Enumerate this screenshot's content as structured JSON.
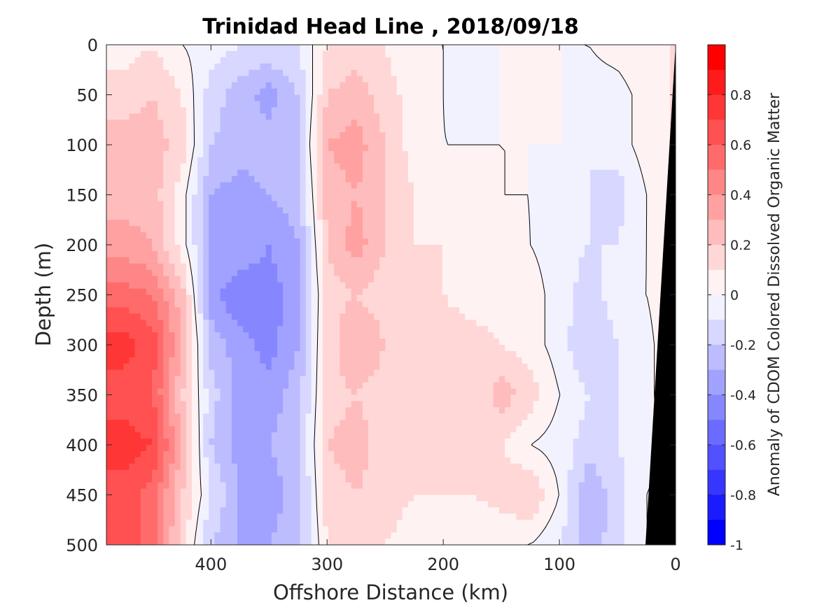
{
  "chart_data": {
    "type": "heatmap",
    "title": "Trinidad Head Line , 2018/09/18",
    "xlabel": "Offshore Distance (km)",
    "ylabel": "Depth (m)",
    "xlim": [
      490,
      0
    ],
    "ylim": [
      0,
      500
    ],
    "x_reversed": true,
    "y_reversed": true,
    "xticks": [
      400,
      300,
      200,
      100,
      0
    ],
    "yticks": [
      0,
      50,
      100,
      150,
      200,
      250,
      300,
      350,
      400,
      450,
      500
    ],
    "colorbar": {
      "label": "Anomaly of CDOM Colored Dissolved Organic Matter",
      "range": [
        -1,
        1
      ],
      "ticks": [
        0.8,
        0.6,
        0.4,
        0.2,
        0,
        -0.2,
        -0.4,
        -0.6,
        -0.8,
        -1
      ],
      "tick_labels": [
        "0.8",
        "0.6",
        "0.4",
        "0.2",
        "0",
        "-0.2",
        "-0.4",
        "-0.6",
        "-0.8",
        "-1"
      ],
      "levels": 20,
      "colormap": "blue-white-red"
    },
    "x": [
      475,
      450,
      425,
      400,
      375,
      350,
      325,
      300,
      275,
      250,
      225,
      200,
      175,
      150,
      125,
      100,
      75,
      50,
      25,
      5
    ],
    "y": [
      0,
      50,
      100,
      150,
      200,
      250,
      300,
      350,
      400,
      450,
      500
    ],
    "z": [
      [
        0.05,
        0.1,
        0.0,
        -0.05,
        -0.1,
        -0.1,
        -0.1,
        0.1,
        0.15,
        0.1,
        0.0,
        0.0,
        0.0,
        0.0,
        0.0,
        0.0,
        0.0,
        0.05,
        0.1,
        0.1
      ],
      [
        0.15,
        0.2,
        0.1,
        -0.15,
        -0.25,
        -0.35,
        -0.2,
        0.2,
        0.25,
        0.15,
        0.05,
        0.0,
        -0.05,
        0.0,
        0.0,
        0.0,
        -0.05,
        -0.05,
        0.05,
        0.1
      ],
      [
        0.25,
        0.25,
        0.15,
        -0.2,
        -0.25,
        -0.25,
        -0.2,
        0.3,
        0.35,
        0.2,
        0.05,
        0.0,
        0.0,
        0.0,
        0.0,
        0.0,
        -0.1,
        -0.05,
        0.05,
        0.1
      ],
      [
        0.25,
        0.25,
        0.05,
        -0.3,
        -0.35,
        -0.3,
        -0.25,
        0.25,
        0.3,
        0.2,
        0.1,
        0.05,
        0.05,
        0.0,
        0.0,
        -0.05,
        -0.1,
        -0.15,
        0.0,
        0.1
      ],
      [
        0.35,
        0.3,
        0.05,
        -0.3,
        -0.3,
        -0.4,
        -0.3,
        0.2,
        0.35,
        0.2,
        0.1,
        0.1,
        0.1,
        0.05,
        0.0,
        -0.05,
        -0.1,
        -0.1,
        0.0,
        0.1
      ],
      [
        0.55,
        0.5,
        0.25,
        -0.35,
        -0.5,
        -0.45,
        -0.35,
        0.15,
        0.2,
        0.15,
        0.15,
        0.1,
        0.05,
        0.05,
        0.05,
        -0.05,
        -0.15,
        -0.05,
        0.0,
        0.1
      ],
      [
        0.75,
        0.65,
        0.3,
        -0.25,
        -0.35,
        -0.45,
        -0.3,
        0.15,
        0.3,
        0.2,
        0.15,
        0.15,
        0.15,
        0.1,
        0.05,
        -0.05,
        -0.2,
        -0.1,
        -0.05,
        0.1
      ],
      [
        0.65,
        0.6,
        0.2,
        -0.15,
        -0.35,
        -0.35,
        -0.25,
        0.15,
        0.2,
        0.15,
        0.2,
        0.15,
        0.1,
        0.25,
        0.15,
        0.0,
        -0.1,
        -0.1,
        -0.05,
        0.1
      ],
      [
        0.75,
        0.7,
        0.3,
        -0.2,
        -0.35,
        -0.3,
        -0.25,
        0.2,
        0.25,
        0.15,
        0.15,
        0.15,
        0.1,
        0.1,
        0.0,
        -0.05,
        -0.15,
        -0.1,
        -0.05,
        0.05
      ],
      [
        0.65,
        0.55,
        0.2,
        -0.1,
        -0.3,
        -0.35,
        -0.25,
        0.15,
        0.2,
        0.15,
        0.1,
        0.1,
        0.1,
        0.15,
        0.2,
        0.0,
        -0.3,
        -0.15,
        0.0,
        0.05
      ],
      [
        0.65,
        0.55,
        0.15,
        -0.2,
        -0.3,
        -0.3,
        -0.25,
        0.1,
        0.15,
        0.1,
        0.05,
        0.0,
        0.0,
        0.0,
        0.0,
        -0.1,
        -0.25,
        -0.15,
        0.0,
        0.0
      ]
    ],
    "masked_region": "seafloor (black) near 0 km",
    "contours": [
      0
    ]
  }
}
